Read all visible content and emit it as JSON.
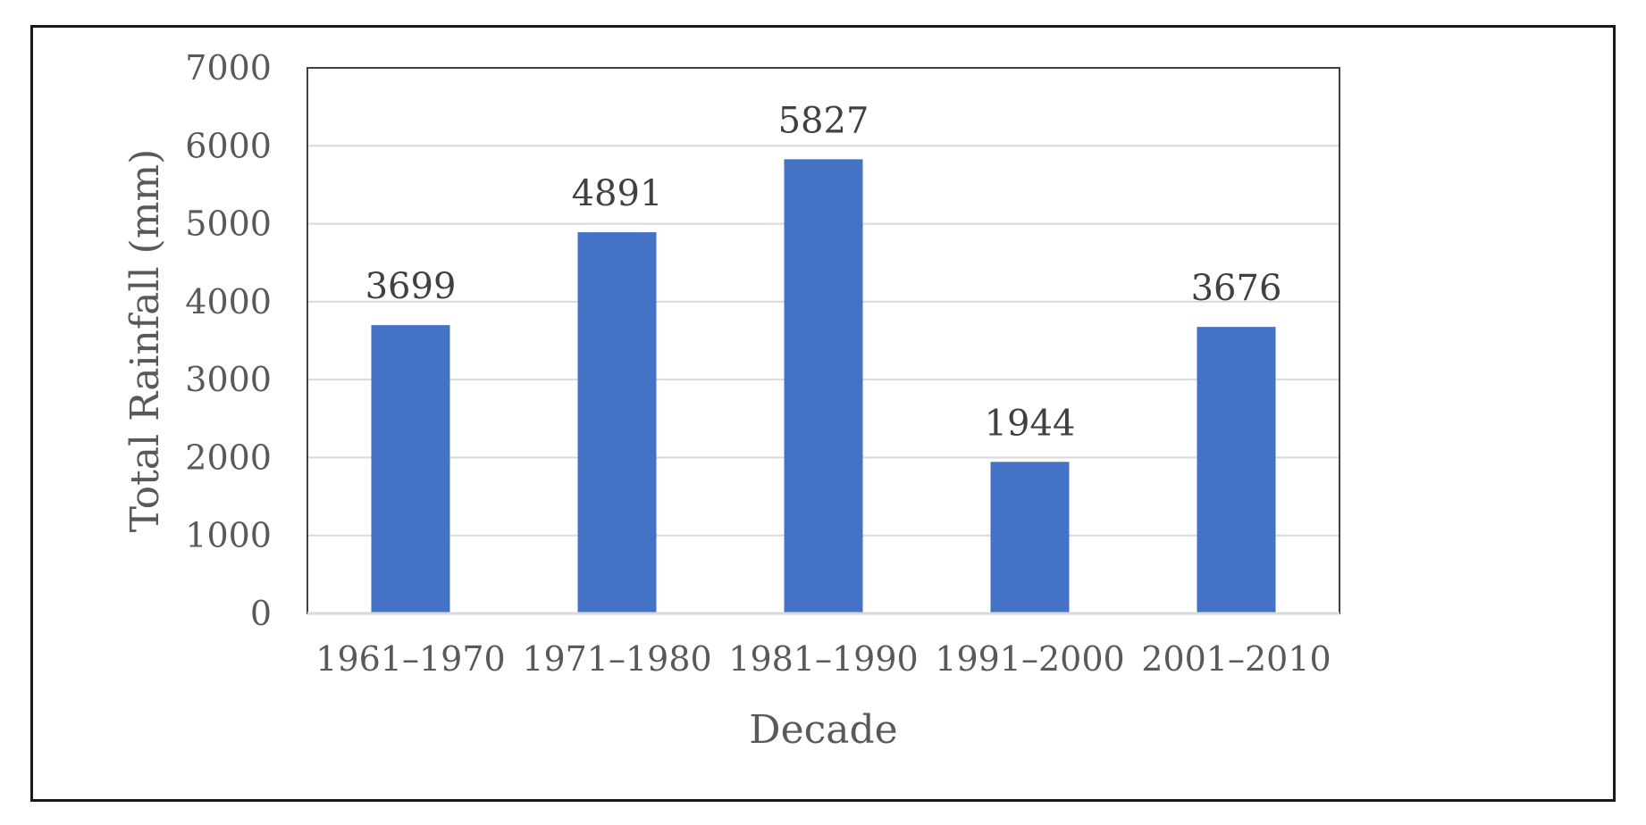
{
  "chart_data": {
    "type": "bar",
    "title": "",
    "xlabel": "Decade",
    "ylabel": "Total Rainfall (mm)",
    "categories": [
      "1961–1970",
      "1971–1980",
      "1981–1990",
      "1991–2000",
      "2001–2010"
    ],
    "values": [
      3699,
      4891,
      5827,
      1944,
      3676
    ],
    "data_labels": [
      "3699",
      "4891",
      "5827",
      "1944",
      "3676"
    ],
    "ylim": [
      0,
      7000
    ],
    "yticks": [
      "0",
      "1000",
      "2000",
      "3000",
      "4000",
      "5000",
      "6000",
      "7000"
    ],
    "grid": true,
    "legend": "none",
    "colors": {
      "bar": "#4472c4",
      "grid": "#d9d9d9",
      "axis": "#404040",
      "text": "#595959"
    }
  }
}
